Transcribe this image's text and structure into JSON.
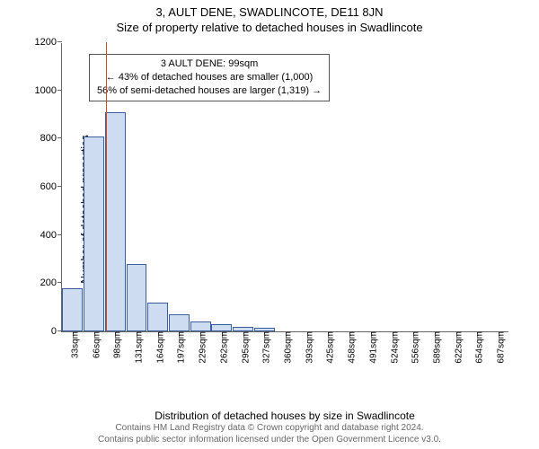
{
  "header": {
    "address": "3, AULT DENE, SWADLINCOTE, DE11 8JN",
    "subtitle": "Size of property relative to detached houses in Swadlincote"
  },
  "chart": {
    "type": "histogram",
    "ylabel": "Number of detached properties",
    "xlabel": "Distribution of detached houses by size in Swadlincote",
    "ylim": [
      0,
      1200
    ],
    "yticks": [
      0,
      200,
      400,
      600,
      800,
      1000,
      1200
    ],
    "bar_fill": "#cedcf2",
    "bar_stroke": "#3b5e9e",
    "background": "#ffffff",
    "axis_color": "#666666",
    "tick_font_size": 11,
    "label_font_size": 12,
    "bars": [
      {
        "label": "33sqm",
        "value": 180
      },
      {
        "label": "66sqm",
        "value": 810
      },
      {
        "label": "98sqm",
        "value": 910
      },
      {
        "label": "131sqm",
        "value": 280
      },
      {
        "label": "164sqm",
        "value": 120
      },
      {
        "label": "197sqm",
        "value": 70
      },
      {
        "label": "229sqm",
        "value": 40
      },
      {
        "label": "262sqm",
        "value": 30
      },
      {
        "label": "295sqm",
        "value": 20
      },
      {
        "label": "327sqm",
        "value": 15
      },
      {
        "label": "360sqm",
        "value": 0
      },
      {
        "label": "393sqm",
        "value": 0
      },
      {
        "label": "425sqm",
        "value": 0
      },
      {
        "label": "458sqm",
        "value": 0
      },
      {
        "label": "491sqm",
        "value": 0
      },
      {
        "label": "524sqm",
        "value": 0
      },
      {
        "label": "556sqm",
        "value": 0
      },
      {
        "label": "589sqm",
        "value": 0
      },
      {
        "label": "622sqm",
        "value": 0
      },
      {
        "label": "654sqm",
        "value": 0
      },
      {
        "label": "687sqm",
        "value": 0
      }
    ],
    "marker": {
      "bin_index": 2,
      "position_in_bin": 0.03,
      "color": "#d9461e"
    },
    "callout": {
      "line1": "3 AULT DENE: 99sqm",
      "line2": "← 43% of detached houses are smaller (1,000)",
      "line3": "56% of semi-detached houses are larger (1,319) →",
      "border_color": "#555555"
    }
  },
  "footer": {
    "line1": "Contains HM Land Registry data © Crown copyright and database right 2024.",
    "line2": "Contains public sector information licensed under the Open Government Licence v3.0."
  }
}
